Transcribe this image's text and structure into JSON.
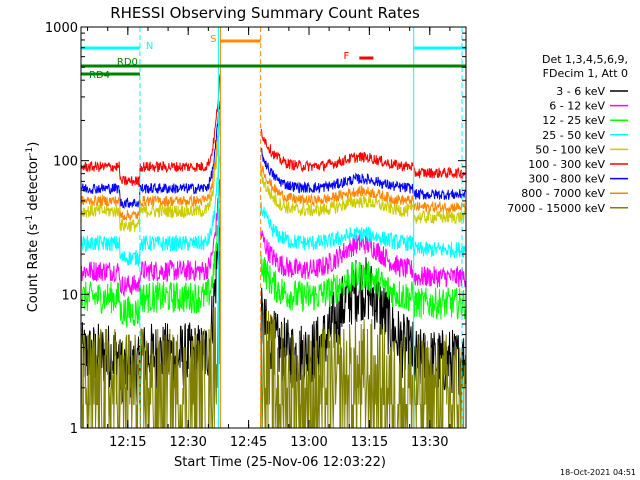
{
  "chart_data": {
    "type": "line",
    "title": "RHESSI Observing Summary Count Rates",
    "xlabel": "Start Time (25-Nov-06 12:03:22)",
    "ylabel": "Count Rate (s",
    "ylabel_sup": "-1",
    "ylabel_mid": " detector",
    "ylabel_end": ")",
    "y_scale": "log",
    "ylim": [
      1,
      1000
    ],
    "xlim": [
      "12:03:22",
      "13:39:00"
    ],
    "y_ticks": [
      {
        "value": 1,
        "label": "1"
      },
      {
        "value": 10,
        "label": "10"
      },
      {
        "value": 100,
        "label": "100"
      },
      {
        "value": 1000,
        "label": "1000"
      }
    ],
    "x_ticks": [
      "12:15",
      "12:30",
      "12:45",
      "13:00",
      "13:15",
      "13:30"
    ],
    "legend_placement": "top-right",
    "legend_header": [
      "Det 1,3,4,5,6,9,",
      "FDecim 1, Att 0"
    ],
    "series": [
      {
        "name": "3 - 6 keV",
        "color": "#000000",
        "base": 3.5,
        "noise": 0.25
      },
      {
        "name": "6 - 12 keV",
        "color": "#ff00ff",
        "base": 15,
        "noise": 0.08
      },
      {
        "name": "12 - 25 keV",
        "color": "#00ff00",
        "base": 9.5,
        "noise": 0.12
      },
      {
        "name": "25 - 50 keV",
        "color": "#00ffff",
        "base": 24,
        "noise": 0.06
      },
      {
        "name": "50 - 100 keV",
        "color": "#cccc00",
        "base": 42,
        "noise": 0.05
      },
      {
        "name": "100 - 300 keV",
        "color": "#ff0000",
        "base": 90,
        "noise": 0.04
      },
      {
        "name": "300 - 800 keV",
        "color": "#0000ff",
        "base": 62,
        "noise": 0.04
      },
      {
        "name": "800 - 7000 keV",
        "color": "#ff8800",
        "base": 50,
        "noise": 0.04
      },
      {
        "name": "7000 - 15000 keV",
        "color": "#808000",
        "base": 1.8,
        "noise": 0.5
      }
    ],
    "flag_bars": [
      {
        "label": "N",
        "color": "#00ffff",
        "start": "12:03:22",
        "end": "12:18:00",
        "row": "top"
      },
      {
        "label": "",
        "color": "#00ffff",
        "start": "13:26:00",
        "end": "13:39:00",
        "row": "top"
      },
      {
        "label": "S",
        "color": "#ff8800",
        "start": "12:38:00",
        "end": "12:48:00",
        "row": "top2"
      },
      {
        "label": "F",
        "color": "#ff0000",
        "start": "13:12:30",
        "end": "13:16:00",
        "row": "f"
      },
      {
        "label": "RD0",
        "color": "#008000",
        "start": "12:03:22",
        "end": "13:39:00",
        "row": "rd0"
      },
      {
        "label": "RD4",
        "color": "#008000",
        "start": "12:03:22",
        "end": "12:18:00",
        "row": "rd4"
      }
    ],
    "vertical_lines": [
      {
        "time": "12:18:00",
        "color": "#00ffff",
        "style": "dashed"
      },
      {
        "time": "12:37:30",
        "color": "#00ffff",
        "style": "solid"
      },
      {
        "time": "12:38:00",
        "color": "#ff8800",
        "style": "solid"
      },
      {
        "time": "12:48:00",
        "color": "#ff8800",
        "style": "dashed"
      },
      {
        "time": "13:26:00",
        "color": "#00ffff",
        "style": "solid"
      },
      {
        "time": "13:38:00",
        "color": "#00ffff",
        "style": "dashed"
      }
    ],
    "gaps": [
      {
        "start": "12:38:00",
        "end": "12:48:00"
      }
    ]
  },
  "footer": {
    "timestamp": "18-Oct-2021 04:51"
  }
}
